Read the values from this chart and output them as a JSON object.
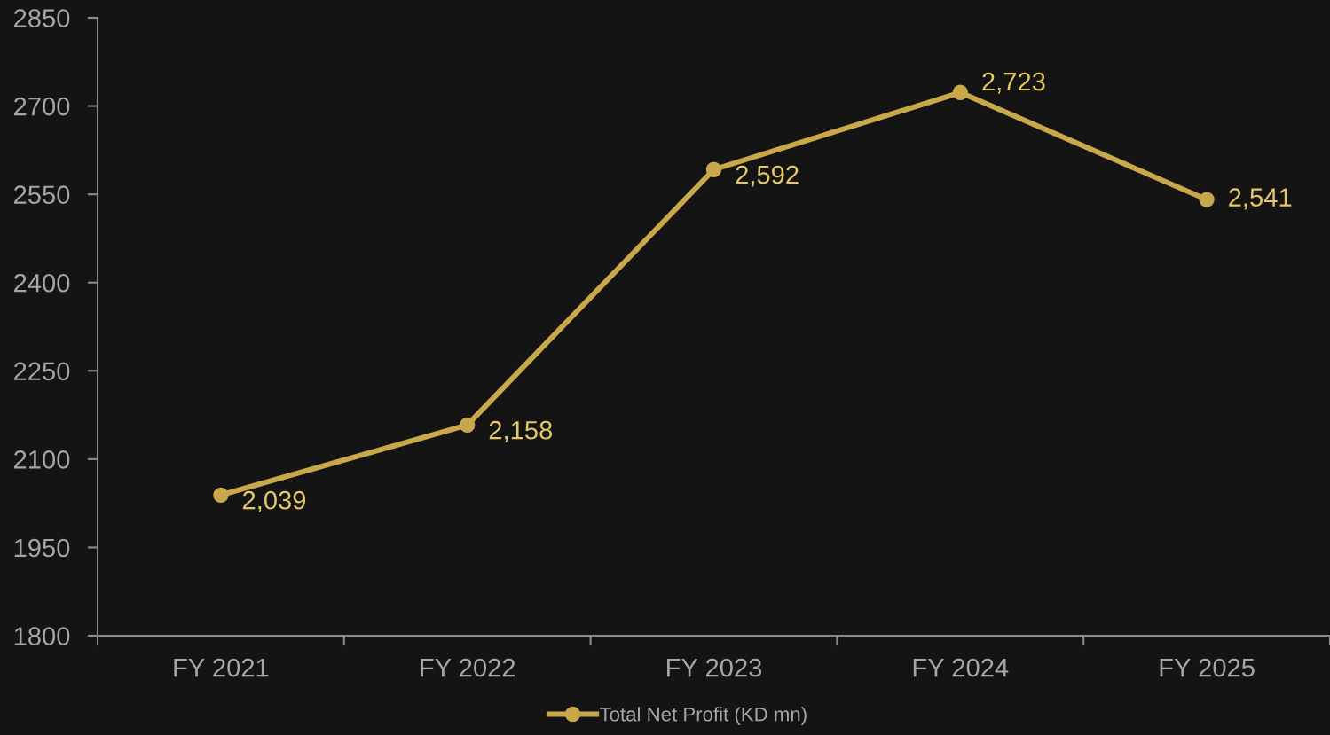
{
  "chart_data": {
    "type": "line",
    "categories": [
      "FY 2021",
      "FY 2022",
      "FY 2023",
      "FY 2024",
      "FY 2025"
    ],
    "series": [
      {
        "name": "Total Net Profit (KD mn)",
        "color": "#c9a84c",
        "values": [
          2039,
          2158,
          2592,
          2723,
          2541
        ],
        "value_labels": [
          "2,039",
          "2,158",
          "2,592",
          "2,723",
          "2,541"
        ]
      }
    ],
    "ylim": [
      1800,
      2850
    ],
    "yticks": [
      1800,
      1950,
      2100,
      2250,
      2400,
      2550,
      2700,
      2850
    ],
    "marker": "circle",
    "line_style": "solid",
    "legend": "bottom"
  }
}
